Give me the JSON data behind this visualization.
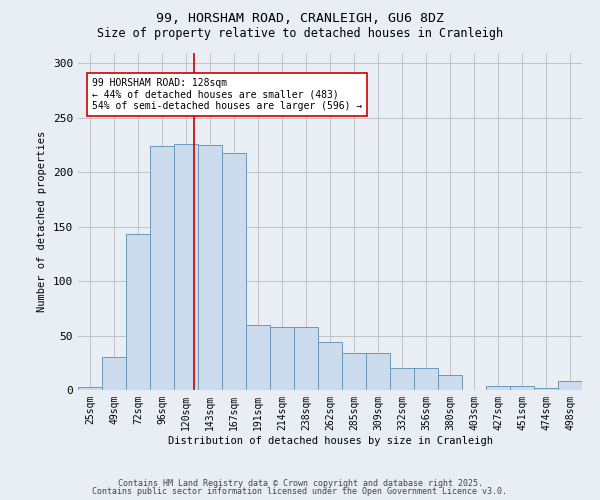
{
  "title1": "99, HORSHAM ROAD, CRANLEIGH, GU6 8DZ",
  "title2": "Size of property relative to detached houses in Cranleigh",
  "xlabel": "Distribution of detached houses by size in Cranleigh",
  "ylabel": "Number of detached properties",
  "bar_labels": [
    "25sqm",
    "49sqm",
    "72sqm",
    "96sqm",
    "120sqm",
    "143sqm",
    "167sqm",
    "191sqm",
    "214sqm",
    "238sqm",
    "262sqm",
    "285sqm",
    "309sqm",
    "332sqm",
    "356sqm",
    "380sqm",
    "403sqm",
    "427sqm",
    "451sqm",
    "474sqm",
    "498sqm"
  ],
  "bar_values": [
    3,
    30,
    143,
    224,
    226,
    225,
    218,
    60,
    58,
    58,
    44,
    34,
    34,
    20,
    20,
    14,
    0,
    4,
    4,
    2,
    8
  ],
  "bar_color": "#ccdcec",
  "bar_edge_color": "#6699bb",
  "property_label": "99 HORSHAM ROAD: 128sqm",
  "smaller_pct": "← 44% of detached houses are smaller (483)",
  "larger_pct": "54% of semi-detached houses are larger (596) →",
  "annotation_box_color": "#ffffff",
  "annotation_box_edge": "#cc0000",
  "ylim": [
    0,
    310
  ],
  "yticks": [
    0,
    50,
    100,
    150,
    200,
    250,
    300
  ],
  "footer1": "Contains HM Land Registry data © Crown copyright and database right 2025.",
  "footer2": "Contains public sector information licensed under the Open Government Licence v3.0.",
  "bg_color": "#e8eef4"
}
